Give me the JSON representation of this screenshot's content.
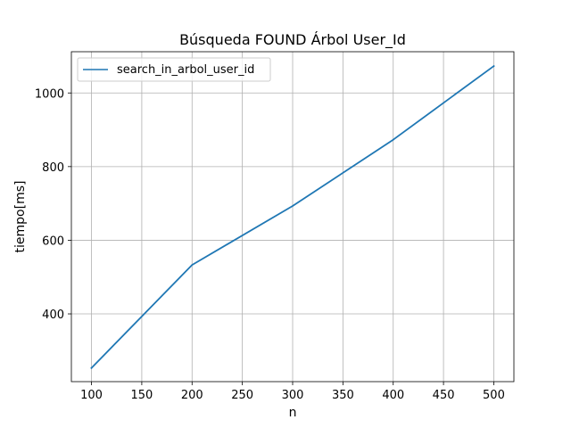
{
  "chart_data": {
    "type": "line",
    "title": "Búsqueda FOUND Árbol User_Id",
    "xlabel": "n",
    "ylabel": "tiempo[ms]",
    "xlim": [
      80,
      520
    ],
    "ylim": [
      216,
      1112
    ],
    "x_ticks": [
      100,
      150,
      200,
      250,
      300,
      350,
      400,
      450,
      500
    ],
    "y_ticks": [
      400,
      600,
      800,
      1000
    ],
    "grid": true,
    "legend_position": "top-left",
    "series": [
      {
        "name": "search_in_arbol_user_id",
        "color": "#1f77b4",
        "x": [
          100,
          200,
          300,
          400,
          500
        ],
        "y": [
          253,
          533,
          693,
          873,
          1073
        ]
      }
    ]
  }
}
